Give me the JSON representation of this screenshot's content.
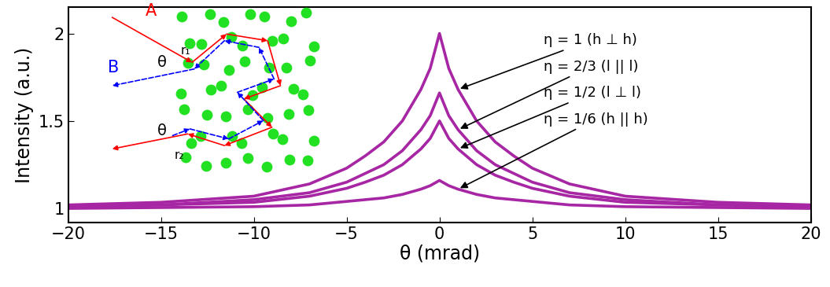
{
  "chart_data": {
    "type": "line",
    "xlabel": "θ (mrad)",
    "ylabel": "Intensity (a.u.)",
    "x": [
      -20,
      -15,
      -10,
      -7,
      -5,
      -4,
      -3,
      -2,
      -1,
      -0.5,
      0,
      0.5,
      1,
      2,
      3,
      4,
      5,
      7,
      10,
      15,
      20
    ],
    "series": [
      {
        "name": "η = 1 (h ⊥ h)",
        "color": "#a626a4",
        "values": [
          1.02,
          1.035,
          1.07,
          1.14,
          1.23,
          1.3,
          1.38,
          1.5,
          1.68,
          1.8,
          2.0,
          1.8,
          1.68,
          1.5,
          1.38,
          1.3,
          1.23,
          1.14,
          1.07,
          1.035,
          1.02
        ]
      },
      {
        "name": "η = 2/3 (l || l)",
        "color": "#a626a4",
        "values": [
          1.01,
          1.02,
          1.05,
          1.09,
          1.15,
          1.2,
          1.25,
          1.33,
          1.45,
          1.53,
          1.66,
          1.53,
          1.45,
          1.33,
          1.25,
          1.2,
          1.15,
          1.09,
          1.05,
          1.02,
          1.01
        ]
      },
      {
        "name": "η = 1/2 (l ⊥ l)",
        "color": "#a626a4",
        "values": [
          1.01,
          1.02,
          1.035,
          1.07,
          1.115,
          1.15,
          1.19,
          1.25,
          1.34,
          1.4,
          1.5,
          1.4,
          1.34,
          1.25,
          1.19,
          1.15,
          1.115,
          1.07,
          1.035,
          1.02,
          1.01
        ]
      },
      {
        "name": "η = 1/6 (h || h)",
        "color": "#a626a4",
        "values": [
          1.0,
          1.005,
          1.01,
          1.02,
          1.04,
          1.05,
          1.06,
          1.08,
          1.11,
          1.13,
          1.16,
          1.13,
          1.11,
          1.08,
          1.06,
          1.05,
          1.04,
          1.02,
          1.01,
          1.005,
          1.0
        ]
      }
    ],
    "xlim": [
      -20,
      20
    ],
    "xticks": [
      {
        "value": -20,
        "label": "−20"
      },
      {
        "value": -15,
        "label": "−15"
      },
      {
        "value": -10,
        "label": "−10"
      },
      {
        "value": -5,
        "label": "−5"
      },
      0,
      5,
      10,
      15,
      20
    ],
    "ylim": [
      0.92,
      2.15
    ],
    "yticks": [
      1,
      1.5,
      2
    ],
    "inset": {
      "path_a": "A",
      "path_b": "B",
      "angle": "θ",
      "entry": "r₁",
      "exit": "r₂"
    }
  }
}
